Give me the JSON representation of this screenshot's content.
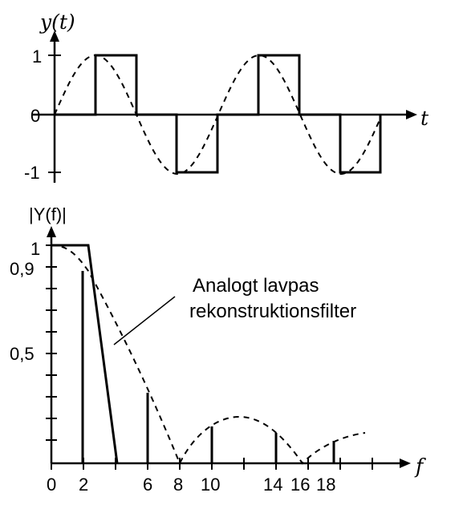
{
  "top_plot": {
    "y_axis_label": "y(t)",
    "x_axis_label": "t",
    "y_ticks": [
      "1",
      "0",
      "-1"
    ]
  },
  "bottom_plot": {
    "y_axis_label": "|Y(f)|",
    "x_axis_label": "f",
    "y_ticks": [
      "1",
      "0,9",
      "0,5"
    ],
    "x_ticks": [
      "0",
      "2",
      "6",
      "8",
      "10",
      "14",
      "16",
      "18"
    ],
    "annotation_line1": "Analogt lavpas",
    "annotation_line2": "rekonstruktionsfilter"
  }
}
